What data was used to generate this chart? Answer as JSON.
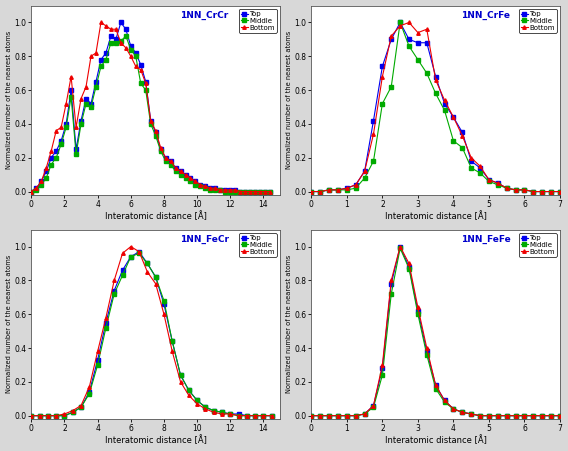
{
  "title_CrCr": "1NN_CrCr",
  "title_CrFe": "1NN_CrFe",
  "title_FeCr": "1NN_FeCr",
  "title_FeFe": "1NN_FeFe",
  "ylabel": "Normalized number of the nearest atoms",
  "xlabel": "Interatomic distance [Å]",
  "colors": {
    "Top": "#0000ee",
    "Middle": "#00aa00",
    "Bottom": "#ee0000"
  },
  "markersize": 2.5,
  "linewidth": 0.8,
  "CrCr": {
    "xlim": [
      0,
      15
    ],
    "xticks": [
      0,
      2,
      4,
      6,
      8,
      10,
      12,
      14
    ],
    "top_x": [
      0.0,
      0.3,
      0.6,
      0.9,
      1.2,
      1.5,
      1.8,
      2.1,
      2.4,
      2.7,
      3.0,
      3.3,
      3.6,
      3.9,
      4.2,
      4.5,
      4.8,
      5.1,
      5.4,
      5.7,
      6.0,
      6.3,
      6.6,
      6.9,
      7.2,
      7.5,
      7.8,
      8.1,
      8.4,
      8.7,
      9.0,
      9.3,
      9.6,
      9.9,
      10.2,
      10.5,
      10.8,
      11.1,
      11.4,
      11.7,
      12.0,
      12.3,
      12.6,
      12.9,
      13.2,
      13.5,
      13.8,
      14.1,
      14.4
    ],
    "top_y": [
      0.0,
      0.02,
      0.06,
      0.12,
      0.2,
      0.24,
      0.3,
      0.4,
      0.6,
      0.25,
      0.42,
      0.55,
      0.52,
      0.65,
      0.78,
      0.82,
      0.92,
      0.9,
      1.0,
      0.96,
      0.86,
      0.82,
      0.75,
      0.65,
      0.42,
      0.35,
      0.25,
      0.2,
      0.18,
      0.14,
      0.12,
      0.1,
      0.08,
      0.06,
      0.04,
      0.03,
      0.02,
      0.02,
      0.01,
      0.01,
      0.01,
      0.01,
      0.0,
      0.0,
      0.0,
      0.0,
      0.0,
      0.0,
      0.0
    ],
    "mid_x": [
      0.0,
      0.3,
      0.6,
      0.9,
      1.2,
      1.5,
      1.8,
      2.1,
      2.4,
      2.7,
      3.0,
      3.3,
      3.6,
      3.9,
      4.2,
      4.5,
      4.8,
      5.1,
      5.4,
      5.7,
      6.0,
      6.3,
      6.6,
      6.9,
      7.2,
      7.5,
      7.8,
      8.1,
      8.4,
      8.7,
      9.0,
      9.3,
      9.6,
      9.9,
      10.2,
      10.5,
      10.8,
      11.1,
      11.4,
      11.7,
      12.0,
      12.3,
      12.6,
      12.9,
      13.2,
      13.5,
      13.8,
      14.1,
      14.4
    ],
    "mid_y": [
      0.0,
      0.01,
      0.04,
      0.08,
      0.16,
      0.2,
      0.28,
      0.38,
      0.56,
      0.22,
      0.4,
      0.52,
      0.5,
      0.62,
      0.74,
      0.78,
      0.88,
      0.88,
      0.89,
      0.92,
      0.84,
      0.8,
      0.64,
      0.6,
      0.4,
      0.33,
      0.24,
      0.18,
      0.16,
      0.12,
      0.1,
      0.08,
      0.06,
      0.04,
      0.03,
      0.02,
      0.01,
      0.01,
      0.01,
      0.0,
      0.0,
      0.0,
      0.0,
      0.0,
      0.0,
      0.0,
      0.0,
      0.0,
      0.0
    ],
    "bot_x": [
      0.0,
      0.3,
      0.6,
      0.9,
      1.2,
      1.5,
      1.8,
      2.1,
      2.4,
      2.7,
      3.0,
      3.3,
      3.6,
      3.9,
      4.2,
      4.5,
      4.8,
      5.1,
      5.4,
      5.7,
      6.0,
      6.3,
      6.6,
      6.9,
      7.2,
      7.5,
      7.8,
      8.1,
      8.4,
      8.7,
      9.0,
      9.3,
      9.6,
      9.9,
      10.2,
      10.5,
      10.8,
      11.1,
      11.4,
      11.7,
      12.0,
      12.3,
      12.6,
      12.9,
      13.2,
      13.5,
      13.8,
      14.1,
      14.4
    ],
    "bot_y": [
      0.0,
      0.02,
      0.06,
      0.14,
      0.24,
      0.36,
      0.38,
      0.52,
      0.68,
      0.38,
      0.55,
      0.62,
      0.8,
      0.82,
      1.0,
      0.98,
      0.96,
      0.96,
      0.88,
      0.85,
      0.8,
      0.74,
      0.72,
      0.64,
      0.42,
      0.36,
      0.26,
      0.2,
      0.18,
      0.14,
      0.12,
      0.1,
      0.08,
      0.06,
      0.04,
      0.03,
      0.02,
      0.02,
      0.01,
      0.01,
      0.01,
      0.01,
      0.0,
      0.0,
      0.0,
      0.0,
      0.0,
      0.0,
      0.0
    ]
  },
  "CrFe": {
    "xlim": [
      0,
      7
    ],
    "xticks": [
      0,
      1,
      2,
      3,
      4,
      5,
      6,
      7
    ],
    "top_x": [
      0.0,
      0.25,
      0.5,
      0.75,
      1.0,
      1.25,
      1.5,
      1.75,
      2.0,
      2.25,
      2.5,
      2.75,
      3.0,
      3.25,
      3.5,
      3.75,
      4.0,
      4.25,
      4.5,
      4.75,
      5.0,
      5.25,
      5.5,
      5.75,
      6.0,
      6.25,
      6.5,
      6.75,
      7.0
    ],
    "top_y": [
      0.0,
      0.0,
      0.01,
      0.01,
      0.02,
      0.04,
      0.12,
      0.42,
      0.74,
      0.9,
      1.0,
      0.9,
      0.88,
      0.88,
      0.68,
      0.52,
      0.44,
      0.35,
      0.18,
      0.14,
      0.07,
      0.05,
      0.02,
      0.01,
      0.01,
      0.0,
      0.0,
      0.0,
      0.0
    ],
    "mid_x": [
      0.0,
      0.25,
      0.5,
      0.75,
      1.0,
      1.25,
      1.5,
      1.75,
      2.0,
      2.25,
      2.5,
      2.75,
      3.0,
      3.25,
      3.5,
      3.75,
      4.0,
      4.25,
      4.5,
      4.75,
      5.0,
      5.25,
      5.5,
      5.75,
      6.0,
      6.25,
      6.5,
      6.75,
      7.0
    ],
    "mid_y": [
      0.0,
      0.0,
      0.01,
      0.01,
      0.01,
      0.02,
      0.08,
      0.18,
      0.52,
      0.62,
      1.0,
      0.86,
      0.78,
      0.7,
      0.58,
      0.48,
      0.3,
      0.26,
      0.14,
      0.11,
      0.06,
      0.04,
      0.02,
      0.01,
      0.01,
      0.0,
      0.0,
      0.0,
      0.0
    ],
    "bot_x": [
      0.0,
      0.25,
      0.5,
      0.75,
      1.0,
      1.25,
      1.5,
      1.75,
      2.0,
      2.25,
      2.5,
      2.75,
      3.0,
      3.25,
      3.5,
      3.75,
      4.0,
      4.25,
      4.5,
      4.75,
      5.0,
      5.25,
      5.5,
      5.75,
      6.0,
      6.25,
      6.5,
      6.75,
      7.0
    ],
    "bot_y": [
      0.0,
      0.0,
      0.01,
      0.01,
      0.02,
      0.04,
      0.12,
      0.34,
      0.68,
      0.92,
      0.98,
      1.0,
      0.94,
      0.96,
      0.66,
      0.54,
      0.44,
      0.33,
      0.2,
      0.15,
      0.07,
      0.05,
      0.02,
      0.01,
      0.01,
      0.0,
      0.0,
      0.0,
      0.0
    ]
  },
  "FeCr": {
    "xlim": [
      0,
      15
    ],
    "xticks": [
      0,
      2,
      4,
      6,
      8,
      10,
      12,
      14
    ],
    "top_x": [
      0.0,
      0.5,
      1.0,
      1.5,
      2.0,
      2.5,
      3.0,
      3.5,
      4.0,
      4.5,
      5.0,
      5.5,
      6.0,
      6.5,
      7.0,
      7.5,
      8.0,
      8.5,
      9.0,
      9.5,
      10.0,
      10.5,
      11.0,
      11.5,
      12.0,
      12.5,
      13.0,
      13.5,
      14.0,
      14.5
    ],
    "top_y": [
      0.0,
      0.0,
      0.0,
      0.0,
      0.0,
      0.02,
      0.05,
      0.14,
      0.33,
      0.55,
      0.74,
      0.86,
      0.94,
      0.97,
      0.9,
      0.82,
      0.66,
      0.44,
      0.24,
      0.15,
      0.09,
      0.05,
      0.03,
      0.02,
      0.01,
      0.01,
      0.0,
      0.0,
      0.0,
      0.0
    ],
    "mid_x": [
      0.0,
      0.5,
      1.0,
      1.5,
      2.0,
      2.5,
      3.0,
      3.5,
      4.0,
      4.5,
      5.0,
      5.5,
      6.0,
      6.5,
      7.0,
      7.5,
      8.0,
      8.5,
      9.0,
      9.5,
      10.0,
      10.5,
      11.0,
      11.5,
      12.0,
      12.5,
      13.0,
      13.5,
      14.0,
      14.5
    ],
    "mid_y": [
      0.0,
      0.0,
      0.0,
      0.0,
      0.0,
      0.02,
      0.05,
      0.13,
      0.3,
      0.52,
      0.72,
      0.83,
      0.94,
      0.96,
      0.9,
      0.82,
      0.68,
      0.44,
      0.24,
      0.15,
      0.09,
      0.05,
      0.03,
      0.02,
      0.01,
      0.0,
      0.0,
      0.0,
      0.0,
      0.0
    ],
    "bot_x": [
      0.0,
      0.5,
      1.0,
      1.5,
      2.0,
      2.5,
      3.0,
      3.5,
      4.0,
      4.5,
      5.0,
      5.5,
      6.0,
      6.5,
      7.0,
      7.5,
      8.0,
      8.5,
      9.0,
      9.5,
      10.0,
      10.5,
      11.0,
      11.5,
      12.0,
      12.5,
      13.0,
      13.5,
      14.0,
      14.5
    ],
    "bot_y": [
      0.0,
      0.0,
      0.0,
      0.0,
      0.01,
      0.03,
      0.06,
      0.17,
      0.38,
      0.58,
      0.8,
      0.96,
      1.0,
      0.97,
      0.85,
      0.78,
      0.6,
      0.38,
      0.2,
      0.12,
      0.07,
      0.04,
      0.02,
      0.01,
      0.01,
      0.0,
      0.0,
      0.0,
      0.0,
      0.0
    ]
  },
  "FeFe": {
    "xlim": [
      0,
      7
    ],
    "xticks": [
      0,
      1,
      2,
      3,
      4,
      5,
      6,
      7
    ],
    "top_x": [
      0.0,
      0.25,
      0.5,
      0.75,
      1.0,
      1.25,
      1.5,
      1.75,
      2.0,
      2.25,
      2.5,
      2.75,
      3.0,
      3.25,
      3.5,
      3.75,
      4.0,
      4.25,
      4.5,
      4.75,
      5.0,
      5.25,
      5.5,
      5.75,
      6.0,
      6.25,
      6.5,
      6.75,
      7.0
    ],
    "top_y": [
      0.0,
      0.0,
      0.0,
      0.0,
      0.0,
      0.0,
      0.01,
      0.06,
      0.28,
      0.78,
      1.0,
      0.88,
      0.62,
      0.38,
      0.18,
      0.09,
      0.04,
      0.02,
      0.01,
      0.0,
      0.0,
      0.0,
      0.0,
      0.0,
      0.0,
      0.0,
      0.0,
      0.0,
      0.0
    ],
    "mid_x": [
      0.0,
      0.25,
      0.5,
      0.75,
      1.0,
      1.25,
      1.5,
      1.75,
      2.0,
      2.25,
      2.5,
      2.75,
      3.0,
      3.25,
      3.5,
      3.75,
      4.0,
      4.25,
      4.5,
      4.75,
      5.0,
      5.25,
      5.5,
      5.75,
      6.0,
      6.25,
      6.5,
      6.75,
      7.0
    ],
    "mid_y": [
      0.0,
      0.0,
      0.0,
      0.0,
      0.0,
      0.0,
      0.01,
      0.05,
      0.24,
      0.72,
      0.99,
      0.87,
      0.6,
      0.36,
      0.16,
      0.08,
      0.04,
      0.02,
      0.01,
      0.0,
      0.0,
      0.0,
      0.0,
      0.0,
      0.0,
      0.0,
      0.0,
      0.0,
      0.0
    ],
    "bot_x": [
      0.0,
      0.25,
      0.5,
      0.75,
      1.0,
      1.25,
      1.5,
      1.75,
      2.0,
      2.25,
      2.5,
      2.75,
      3.0,
      3.25,
      3.5,
      3.75,
      4.0,
      4.25,
      4.5,
      4.75,
      5.0,
      5.25,
      5.5,
      5.75,
      6.0,
      6.25,
      6.5,
      6.75,
      7.0
    ],
    "bot_y": [
      0.0,
      0.0,
      0.0,
      0.0,
      0.0,
      0.0,
      0.01,
      0.06,
      0.3,
      0.8,
      1.0,
      0.9,
      0.64,
      0.4,
      0.18,
      0.09,
      0.04,
      0.02,
      0.01,
      0.0,
      0.0,
      0.0,
      0.0,
      0.0,
      0.0,
      0.0,
      0.0,
      0.0,
      0.0
    ]
  },
  "bg_color": "#d8d8d8",
  "plot_bg": "#ffffff",
  "title_color": "#0000cc"
}
